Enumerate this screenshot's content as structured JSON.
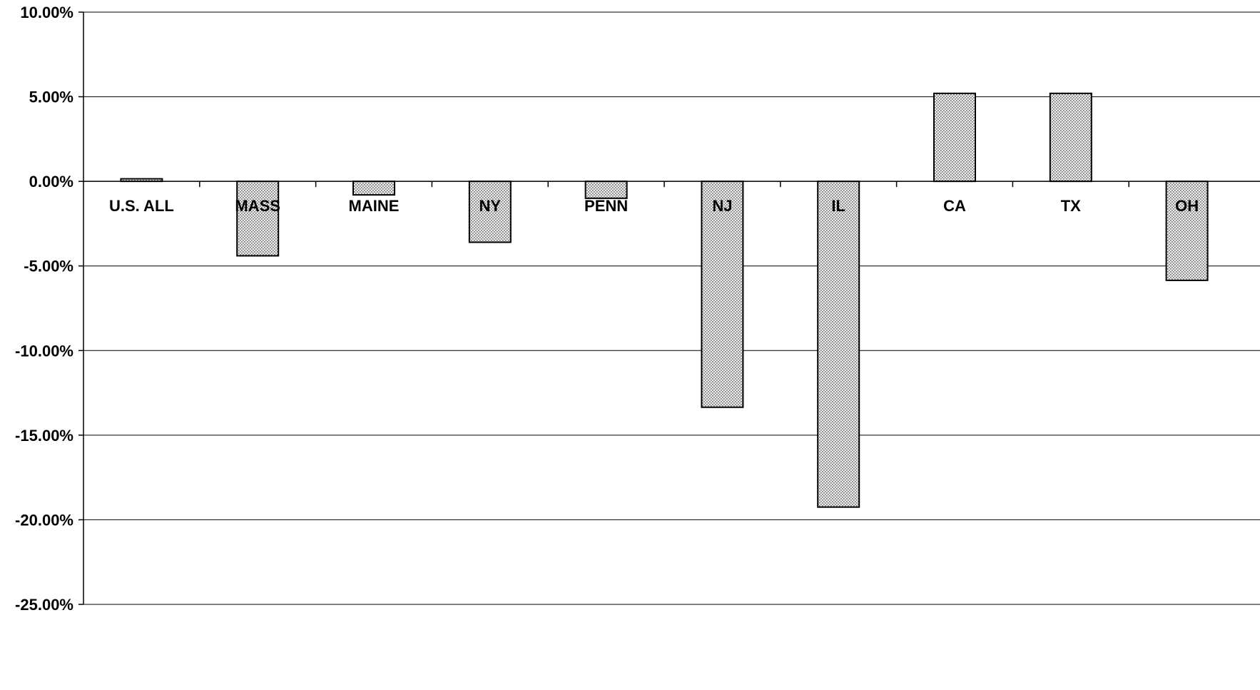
{
  "chart_data": {
    "type": "bar",
    "categories": [
      "U.S. ALL",
      "MASS",
      "MAINE",
      "NY",
      "PENN",
      "NJ",
      "IL",
      "CA",
      "TX",
      "OH"
    ],
    "values": [
      0.15,
      -4.4,
      -0.8,
      -3.6,
      -1.0,
      -13.35,
      -19.25,
      5.2,
      5.2,
      -5.85
    ],
    "ylim": [
      -25,
      10
    ],
    "yticks": [
      10,
      5,
      0,
      -5,
      -10,
      -15,
      -20,
      -25
    ],
    "ytick_labels": [
      "10.00%",
      "5.00%",
      "0.00%",
      "-5.00%",
      "-10.00%",
      "-15.00%",
      "-20.00%",
      "-25.00%"
    ],
    "grid": true,
    "title": "",
    "xlabel": "",
    "ylabel": "",
    "bar_fill": "#d9d9d9",
    "bar_stroke": "#000000",
    "gridline_color": "#000000"
  }
}
